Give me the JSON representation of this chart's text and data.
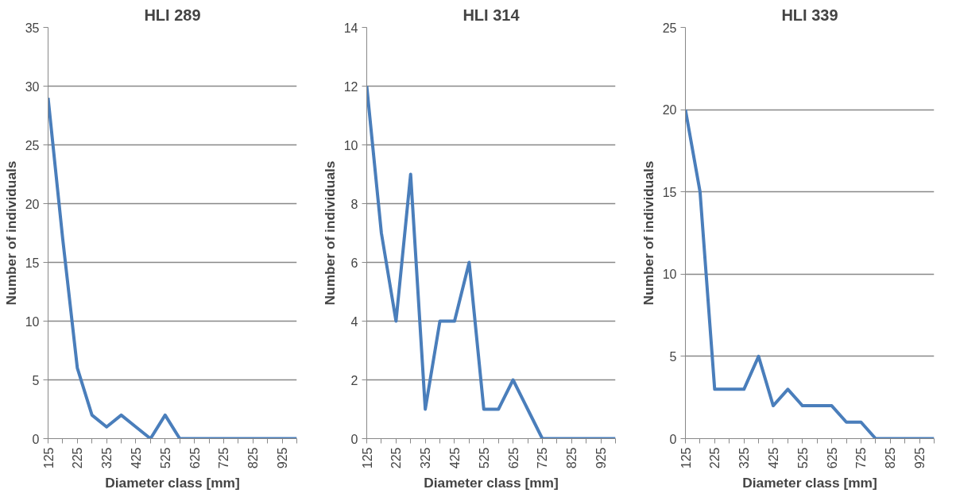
{
  "chart_data": [
    {
      "type": "line",
      "title": "HLI 289",
      "xlabel": "Diameter class [mm]",
      "ylabel": "Number of individuals",
      "categories": [
        "125",
        null,
        "225",
        null,
        "325",
        null,
        "425",
        null,
        "525",
        null,
        "625",
        null,
        "725",
        null,
        "825",
        null,
        "925",
        null
      ],
      "values": [
        29,
        17,
        6,
        2,
        1,
        2,
        1,
        0,
        2,
        0,
        0,
        0,
        0,
        0,
        0,
        0,
        0,
        0
      ],
      "color": "#4a7ebb",
      "ylim": [
        0,
        35
      ],
      "yticks": [
        0,
        5,
        10,
        15,
        20,
        25,
        30,
        35
      ],
      "grid": "y"
    },
    {
      "type": "line",
      "title": "HLI 314",
      "xlabel": "Diameter class [mm]",
      "ylabel": "Number of individuals",
      "categories": [
        "125",
        null,
        "225",
        null,
        "325",
        null,
        "425",
        null,
        "525",
        null,
        "625",
        null,
        "725",
        null,
        "825",
        null,
        "925",
        null
      ],
      "values": [
        12,
        7,
        4,
        9,
        1,
        4,
        4,
        6,
        1,
        1,
        2,
        1,
        0,
        0,
        0,
        0,
        0,
        0
      ],
      "color": "#4a7ebb",
      "ylim": [
        0,
        14
      ],
      "yticks": [
        0,
        2,
        4,
        6,
        8,
        10,
        12,
        14
      ],
      "grid": "y"
    },
    {
      "type": "line",
      "title": "HLI 339",
      "xlabel": "Diameter class [mm]",
      "ylabel": "Number of individuals",
      "categories": [
        "125",
        null,
        "225",
        null,
        "325",
        null,
        "425",
        null,
        "525",
        null,
        "625",
        null,
        "725",
        null,
        "825",
        null,
        "925",
        null
      ],
      "values": [
        20,
        15,
        3,
        3,
        3,
        5,
        2,
        3,
        2,
        2,
        2,
        1,
        1,
        0,
        0,
        0,
        0,
        0
      ],
      "color": "#4a7ebb",
      "ylim": [
        0,
        25
      ],
      "yticks": [
        0,
        5,
        10,
        15,
        20,
        25
      ],
      "grid": "y"
    }
  ]
}
